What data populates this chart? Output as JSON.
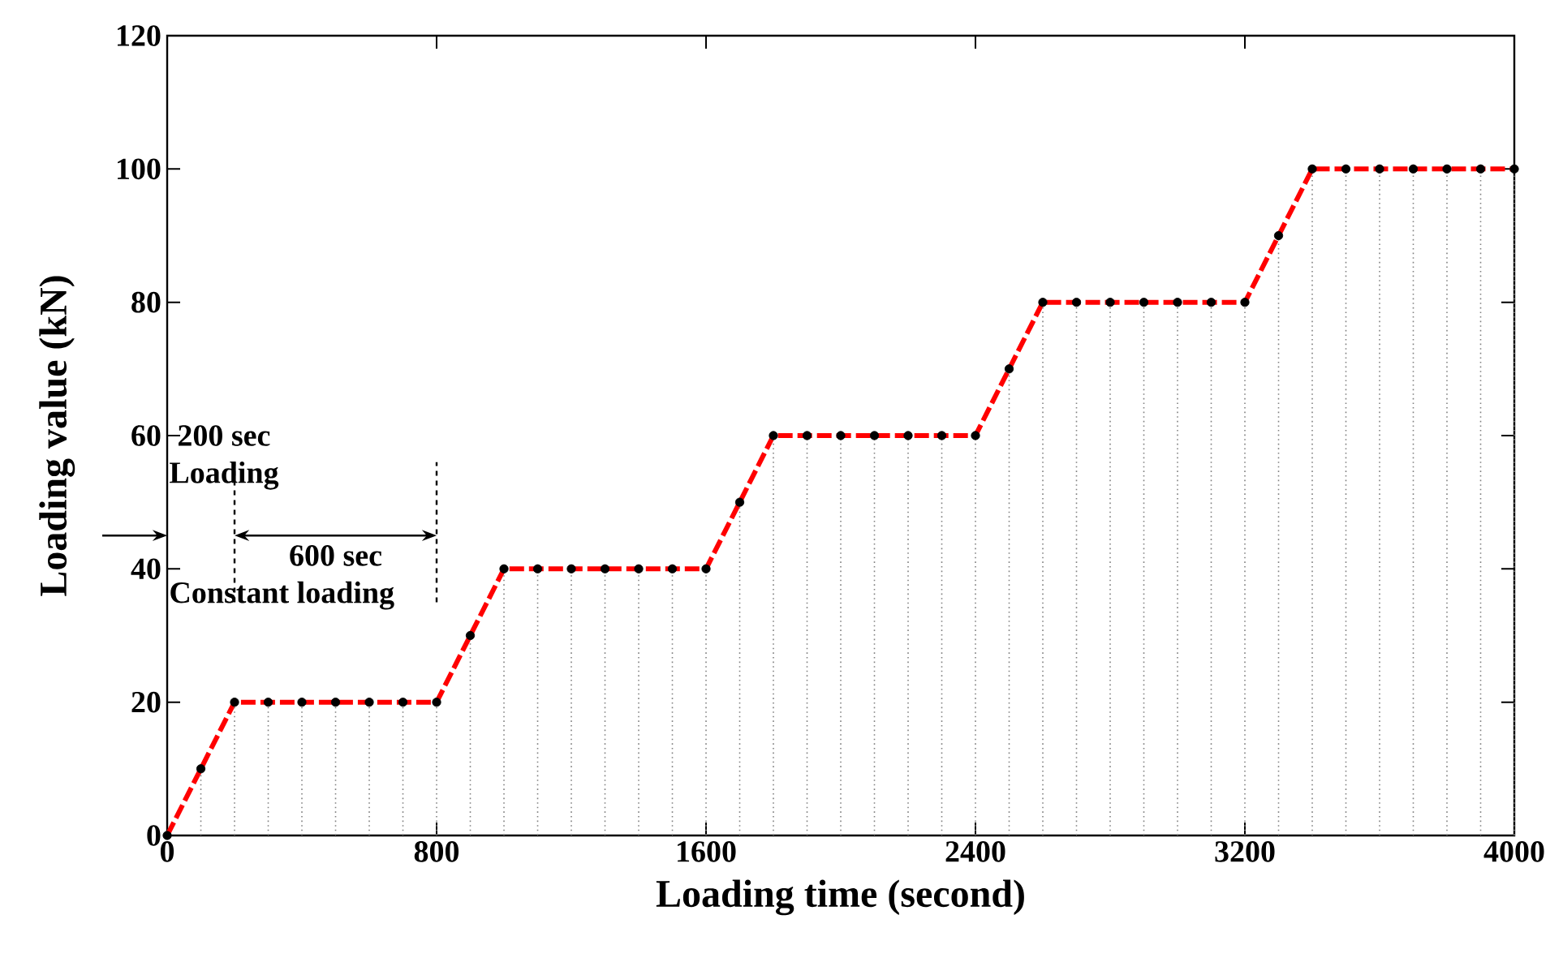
{
  "chart_data": {
    "type": "line",
    "xlabel": "Loading time (second)",
    "ylabel": "Loading value (kN)",
    "x": [
      0,
      100,
      200,
      300,
      400,
      500,
      600,
      700,
      800,
      900,
      1000,
      1100,
      1200,
      1300,
      1400,
      1500,
      1600,
      1700,
      1800,
      1900,
      2000,
      2100,
      2200,
      2300,
      2400,
      2500,
      2600,
      2700,
      2800,
      2900,
      3000,
      3100,
      3200,
      3300,
      3400,
      3500,
      3600,
      3700,
      3800,
      3900,
      4000
    ],
    "series": [
      {
        "color": "#ff0000",
        "line_style": "dashed",
        "marker": "none",
        "values": [
          0,
          10,
          20,
          20,
          20,
          20,
          20,
          20,
          20,
          30,
          40,
          40,
          40,
          40,
          40,
          40,
          40,
          50,
          60,
          60,
          60,
          60,
          60,
          60,
          60,
          70,
          80,
          80,
          80,
          80,
          80,
          80,
          80,
          90,
          100,
          100,
          100,
          100,
          100,
          100,
          100
        ]
      },
      {
        "type": "lollipop",
        "color": "#000000",
        "line_style": "dotted",
        "marker": "circle",
        "values": [
          0,
          10,
          20,
          20,
          20,
          20,
          20,
          20,
          20,
          30,
          40,
          40,
          40,
          40,
          40,
          40,
          40,
          50,
          60,
          60,
          60,
          60,
          60,
          60,
          60,
          70,
          80,
          80,
          80,
          80,
          80,
          80,
          80,
          90,
          100,
          100,
          100,
          100,
          100,
          100,
          100
        ]
      }
    ],
    "xlim": [
      0,
      4000
    ],
    "xticks": [
      0,
      800,
      1600,
      2400,
      3200,
      4000
    ],
    "ylim": [
      0,
      120
    ],
    "yticks": [
      0,
      20,
      40,
      60,
      80,
      100,
      120
    ],
    "annotations": [
      "200 sec",
      "Loading",
      "600 sec",
      "Constant  loading"
    ]
  }
}
